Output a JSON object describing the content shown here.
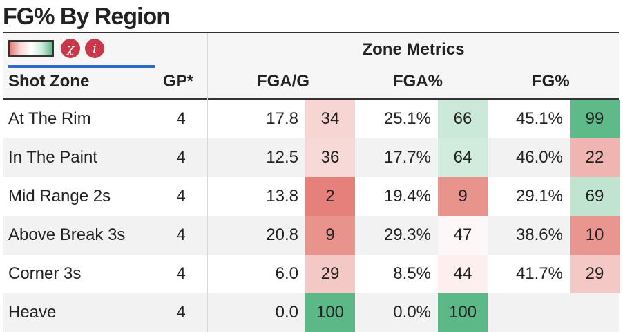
{
  "title": "FG% By Region",
  "legend": {
    "icon_1": "x-circle-icon",
    "icon_2": "info-icon",
    "icon_1_glyph": "χ",
    "icon_2_glyph": "i"
  },
  "group_header": "Zone Metrics",
  "columns": {
    "zone": "Shot Zone",
    "gp": "GP*",
    "fga_g": "FGA/G",
    "fga_pct": "FGA%",
    "fg_pct": "FG%"
  },
  "colors": {
    "header_bg": "#f6f6f6",
    "row_alt_bg": "#f2f2f2",
    "accent_blue": "#2b6cc4",
    "rank_scale": {
      "low": "#e47b74",
      "mid": "#ffffff",
      "high": "#5cb987"
    }
  },
  "rows": [
    {
      "zone": "At The Rim",
      "gp": "4",
      "fga_g": "17.8",
      "fga_g_rank": "34",
      "fga_pct": "25.1%",
      "fga_pct_rank": "66",
      "fg_pct": "45.1%",
      "fg_pct_rank": "99"
    },
    {
      "zone": "In The Paint",
      "gp": "4",
      "fga_g": "12.5",
      "fga_g_rank": "36",
      "fga_pct": "17.7%",
      "fga_pct_rank": "64",
      "fg_pct": "46.0%",
      "fg_pct_rank": "22"
    },
    {
      "zone": "Mid Range 2s",
      "gp": "4",
      "fga_g": "13.8",
      "fga_g_rank": "2",
      "fga_pct": "19.4%",
      "fga_pct_rank": "9",
      "fg_pct": "29.1%",
      "fg_pct_rank": "69"
    },
    {
      "zone": "Above Break 3s",
      "gp": "4",
      "fga_g": "20.8",
      "fga_g_rank": "9",
      "fga_pct": "29.3%",
      "fga_pct_rank": "47",
      "fg_pct": "38.6%",
      "fg_pct_rank": "10"
    },
    {
      "zone": "Corner 3s",
      "gp": "4",
      "fga_g": "6.0",
      "fga_g_rank": "29",
      "fga_pct": "8.5%",
      "fga_pct_rank": "44",
      "fg_pct": "41.7%",
      "fg_pct_rank": "29"
    },
    {
      "zone": "Heave",
      "gp": "4",
      "fga_g": "0.0",
      "fga_g_rank": "100",
      "fga_pct": "0.0%",
      "fga_pct_rank": "100",
      "fg_pct": "",
      "fg_pct_rank": ""
    }
  ]
}
